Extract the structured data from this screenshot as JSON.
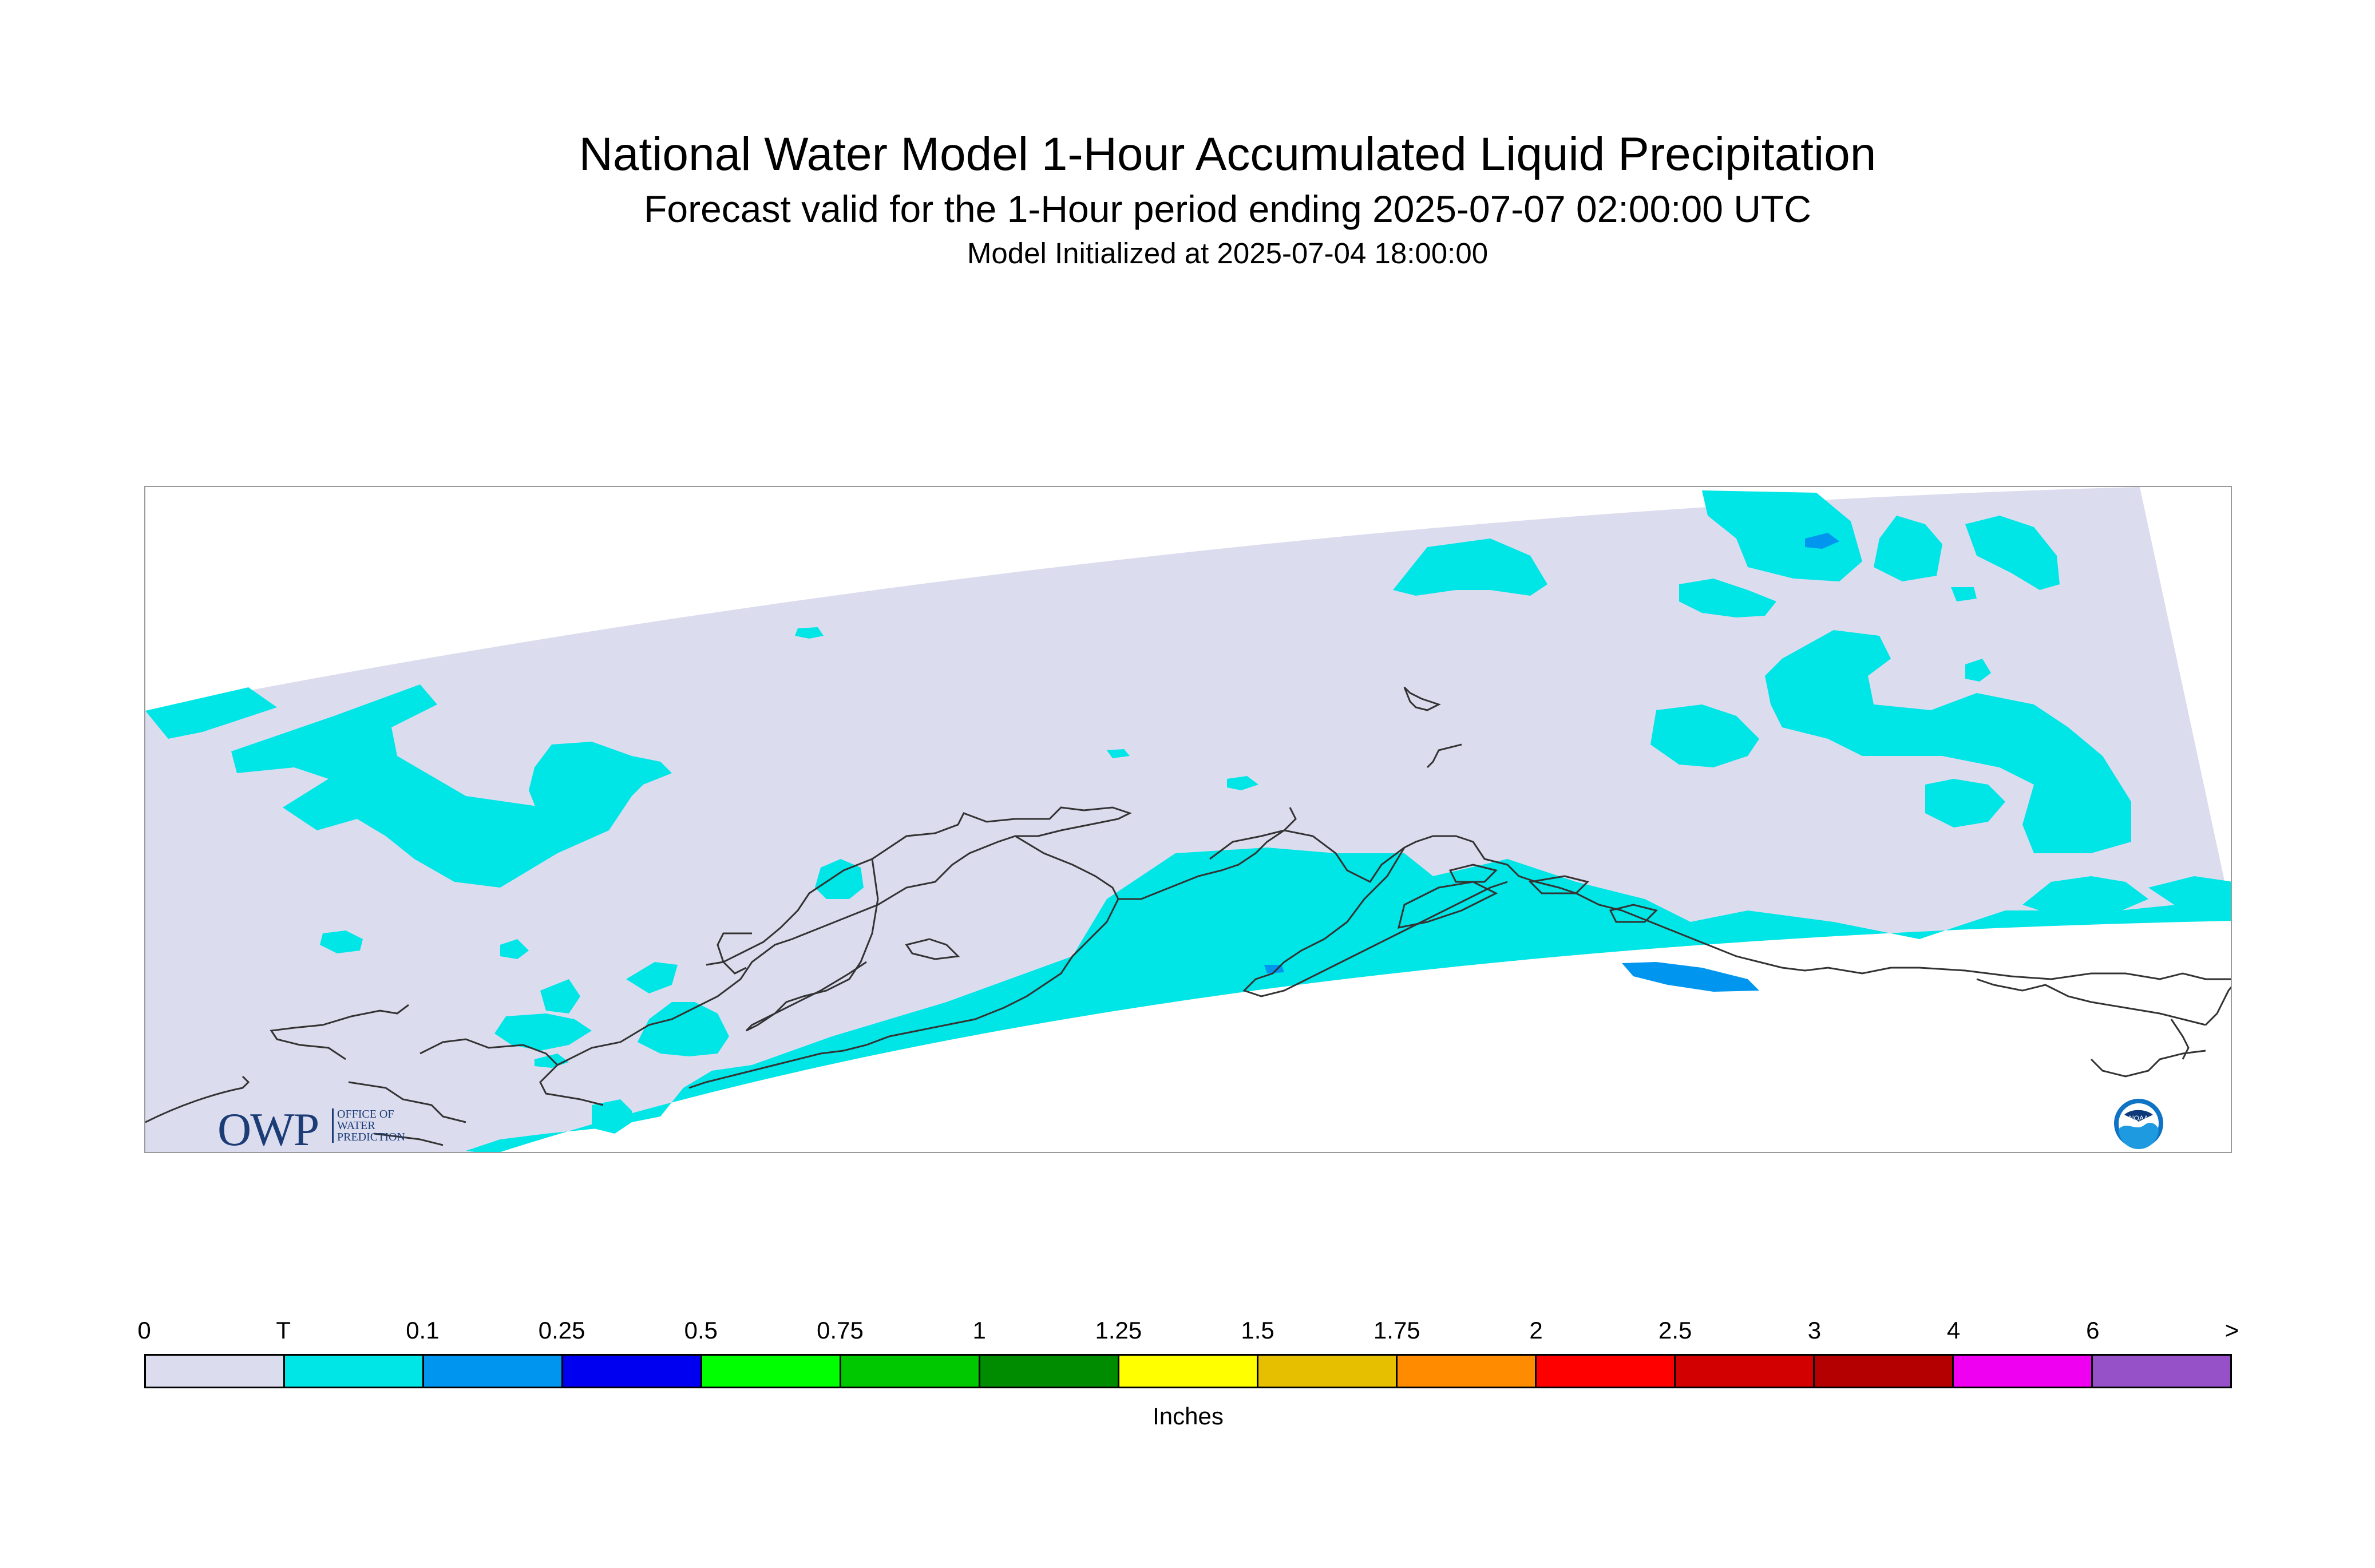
{
  "title": "National Water Model 1-Hour Accumulated Liquid Precipitation",
  "subtitle": "Forecast valid for the 1-Hour period ending 2025-07-07 02:00:00 UTC",
  "initialized": "Model Initialized at 2025-07-04 18:00:00",
  "map": {
    "region": "Alaska",
    "background_color": "#dcdcef",
    "trace_color": "#00e5e5",
    "coastline_color": "#333333"
  },
  "logos": {
    "owp_letters": "OWP",
    "owp_text": "OFFICE OF WATER PREDICTION",
    "noaa_text": "NOAA"
  },
  "legend": {
    "units": "Inches",
    "labels": [
      "0",
      "T",
      "0.1",
      "0.25",
      "0.5",
      "0.75",
      "1",
      "1.25",
      "1.5",
      "1.75",
      "2",
      "2.5",
      "3",
      "4",
      "6",
      ">"
    ],
    "colors": [
      "#dcdcef",
      "#00e5e5",
      "#0096f0",
      "#0000f0",
      "#00ff00",
      "#00c800",
      "#008c00",
      "#ffff00",
      "#e6c000",
      "#ff8c00",
      "#ff0000",
      "#d20000",
      "#b40000",
      "#f000f0",
      "#9650c8"
    ]
  }
}
